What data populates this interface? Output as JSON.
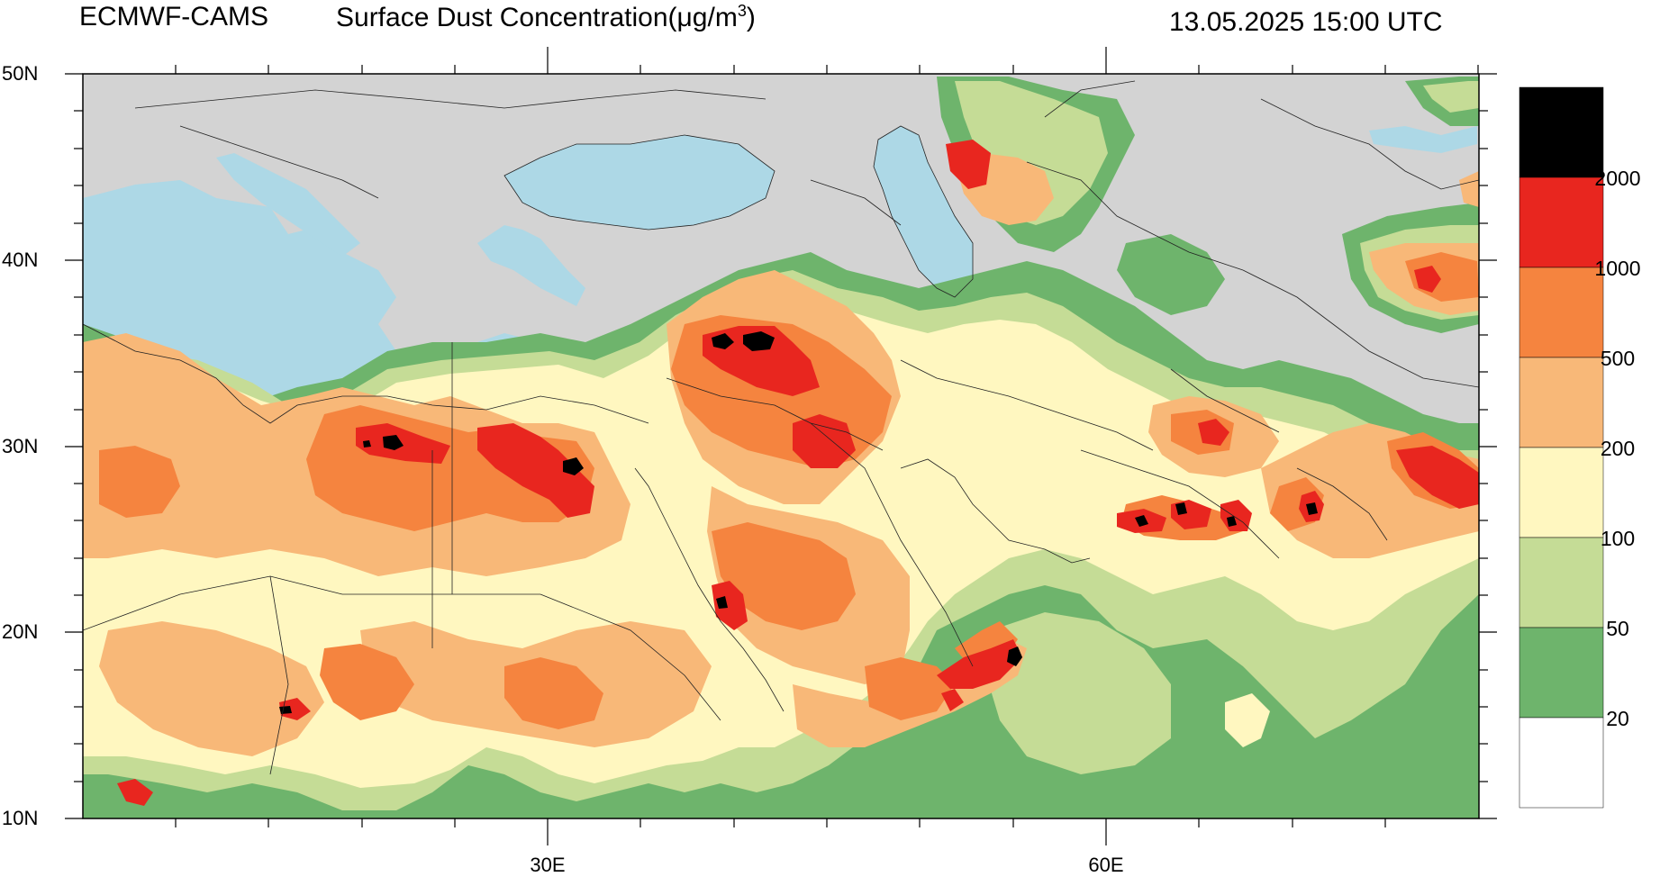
{
  "header": {
    "source": "ECMWF-CAMS",
    "variable": "Surface Dust Concentration(",
    "unit_mu": "μg/m",
    "unit_sup": "3",
    "unit_close": ")",
    "datetime": "13.05.2025 15:00 UTC"
  },
  "axes": {
    "lat_labels": [
      "50N",
      "40N",
      "30N",
      "20N",
      "10N"
    ],
    "lon_labels": [
      "30E",
      "60E"
    ]
  },
  "legend": {
    "levels": [
      "2000",
      "1000",
      "500",
      "200",
      "100",
      "50",
      "20"
    ],
    "colors": [
      "#000000",
      "#e8261f",
      "#f5843f",
      "#f8b878",
      "#fff7c0",
      "#c5dc96",
      "#6eb46c",
      "#ffffff"
    ]
  },
  "colors": {
    "land": "#d3d3d3",
    "water": "#add8e6",
    "border": "#222222"
  }
}
